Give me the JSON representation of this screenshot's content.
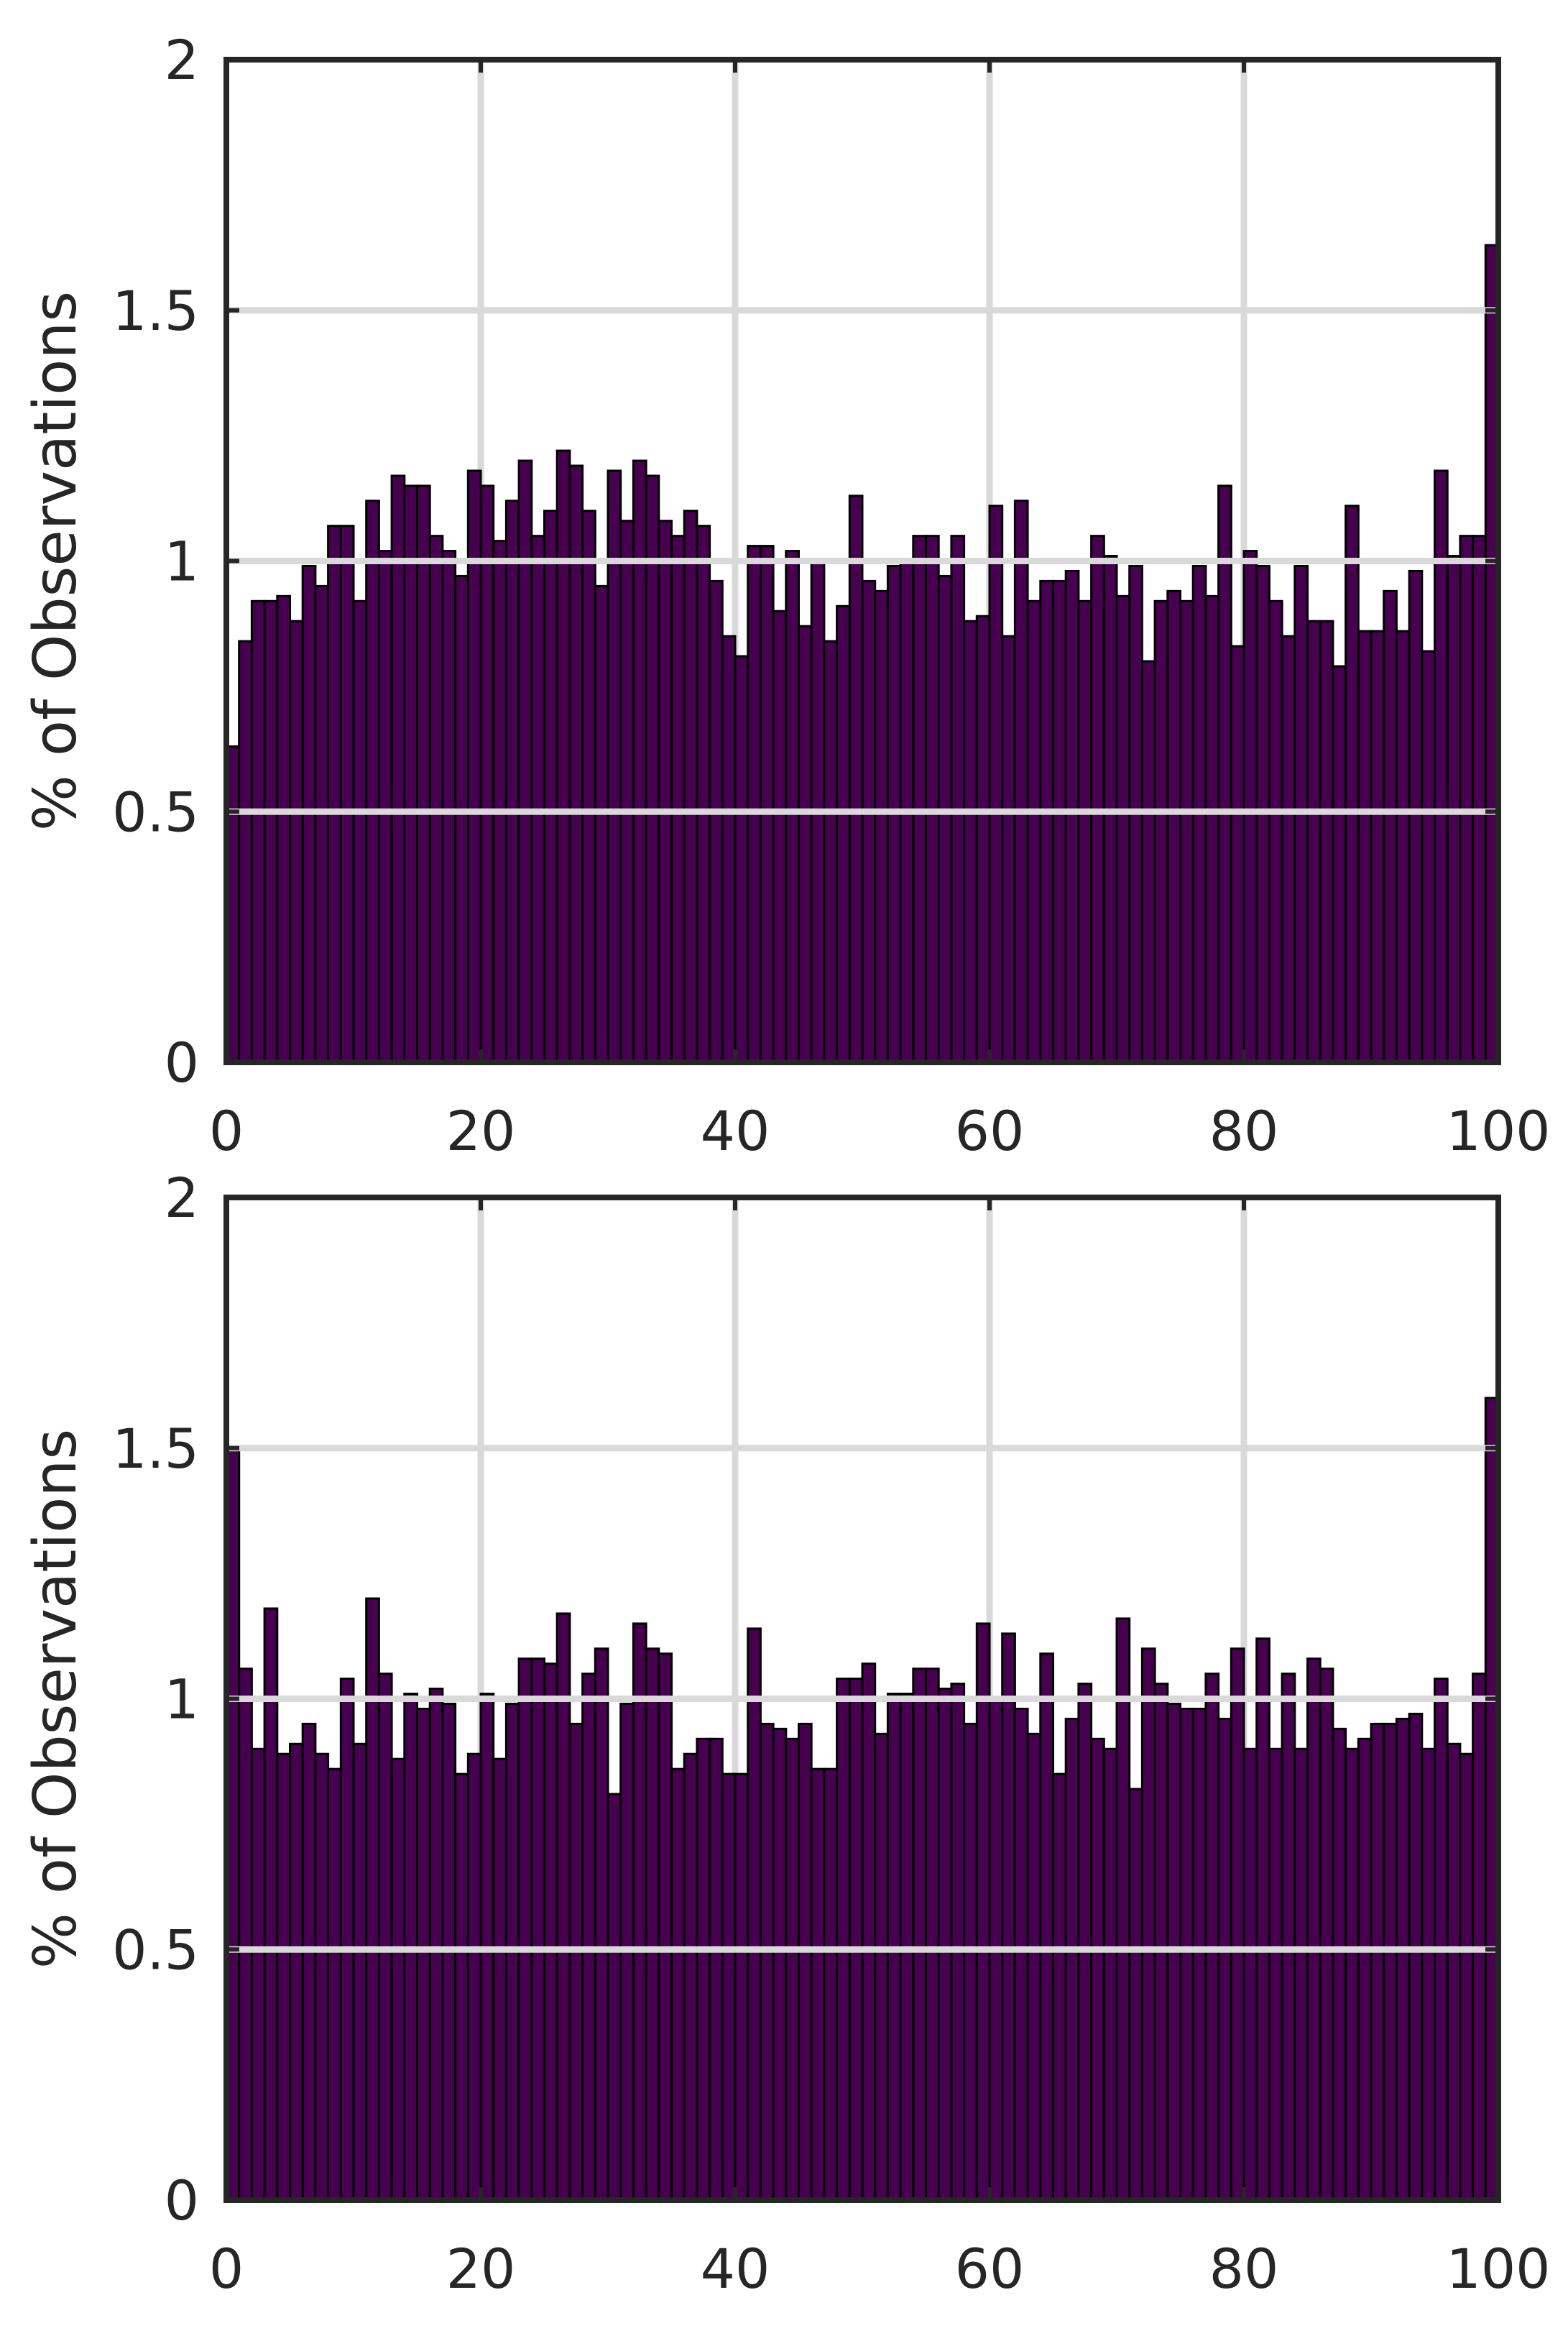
{
  "colors": {
    "bar_fill": "#46004f",
    "bar_edge": "#000000",
    "grid": "#d9d9d9",
    "axis": "#262626",
    "background": "#ffffff"
  },
  "chart_data": [
    {
      "type": "bar",
      "ylabel": "% of Observations",
      "xlabel": "",
      "title": "",
      "xlim": [
        0,
        100
      ],
      "ylim": [
        0,
        2
      ],
      "xticks": [
        "0",
        "20",
        "40",
        "60",
        "80",
        "100"
      ],
      "yticks": [
        "0",
        "0.5",
        "1",
        "1.5",
        "2"
      ],
      "grid": true,
      "bin_edges_start": 0,
      "bin_width": 1,
      "values": [
        0.63,
        0.84,
        0.92,
        0.92,
        0.93,
        0.88,
        0.99,
        0.95,
        1.07,
        1.07,
        0.92,
        1.12,
        1.02,
        1.17,
        1.15,
        1.15,
        1.05,
        1.02,
        0.97,
        1.18,
        1.15,
        1.04,
        1.12,
        1.2,
        1.05,
        1.1,
        1.22,
        1.19,
        1.1,
        0.95,
        1.18,
        1.08,
        1.2,
        1.17,
        1.08,
        1.05,
        1.1,
        1.07,
        0.96,
        0.85,
        0.81,
        1.03,
        1.03,
        0.9,
        1.02,
        0.87,
        1.0,
        0.84,
        0.91,
        1.13,
        0.96,
        0.94,
        0.99,
        1.0,
        1.05,
        1.05,
        0.97,
        1.05,
        0.88,
        0.89,
        1.11,
        0.85,
        1.12,
        0.92,
        0.96,
        0.96,
        0.98,
        0.92,
        1.05,
        1.01,
        0.93,
        0.99,
        0.8,
        0.92,
        0.94,
        0.92,
        0.99,
        0.93,
        1.15,
        0.83,
        1.02,
        0.99,
        0.92,
        0.85,
        0.99,
        0.88,
        0.88,
        0.79,
        1.11,
        0.86,
        0.86,
        0.94,
        0.86,
        0.98,
        0.82,
        1.18,
        1.01,
        1.05,
        1.05,
        1.63
      ]
    },
    {
      "type": "bar",
      "ylabel": "% of Observations",
      "xlabel": "",
      "title": "",
      "xlim": [
        0,
        100
      ],
      "ylim": [
        0,
        2
      ],
      "xticks": [
        "0",
        "20",
        "40",
        "60",
        "80",
        "100"
      ],
      "yticks": [
        "0",
        "0.5",
        "1",
        "1.5",
        "2"
      ],
      "grid": true,
      "bin_edges_start": 0,
      "bin_width": 1,
      "values": [
        1.5,
        1.06,
        0.9,
        1.18,
        0.89,
        0.91,
        0.95,
        0.89,
        0.86,
        1.04,
        0.91,
        1.2,
        1.05,
        0.88,
        1.01,
        0.98,
        1.02,
        0.99,
        0.85,
        0.89,
        1.01,
        0.88,
        0.99,
        1.08,
        1.08,
        1.07,
        1.17,
        0.95,
        1.05,
        1.1,
        0.81,
        0.99,
        1.15,
        1.1,
        1.09,
        0.86,
        0.89,
        0.92,
        0.92,
        0.85,
        0.85,
        1.14,
        0.95,
        0.94,
        0.92,
        0.95,
        0.86,
        0.86,
        1.04,
        1.04,
        1.07,
        0.93,
        1.01,
        1.01,
        1.06,
        1.06,
        1.02,
        1.03,
        0.95,
        1.15,
        1.0,
        1.13,
        0.98,
        0.93,
        1.09,
        0.85,
        0.96,
        1.03,
        0.92,
        0.9,
        1.16,
        0.82,
        1.1,
        1.03,
        0.99,
        0.98,
        0.98,
        1.05,
        0.96,
        1.1,
        0.9,
        1.12,
        0.9,
        1.05,
        0.9,
        1.08,
        1.06,
        0.94,
        0.9,
        0.92,
        0.95,
        0.95,
        0.96,
        0.97,
        0.9,
        1.04,
        0.91,
        0.89,
        1.05,
        1.6
      ]
    }
  ]
}
